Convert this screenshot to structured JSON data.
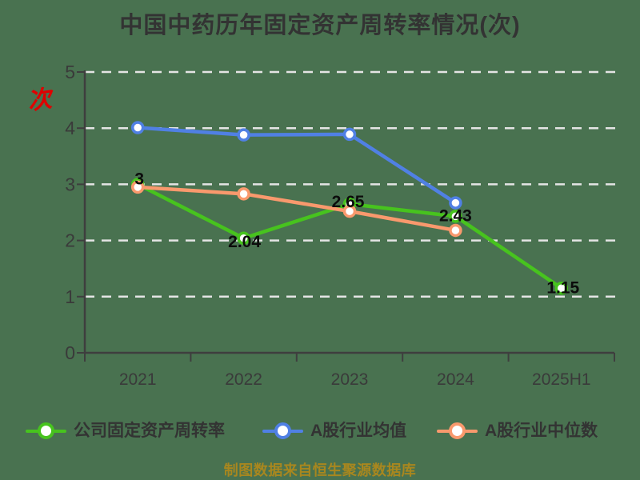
{
  "title": "中国中药历年固定资产周转率情况(次)",
  "y_axis_unit": "次",
  "watermark": "制图数据来自恒生聚源数据库",
  "colors": {
    "background": "#497250",
    "company": "#47c31e",
    "industry_mean": "#5080e4",
    "industry_median": "#f9996d",
    "axis": "#3e3e3e",
    "grid": "#e4e4e4",
    "title_text": "#333333",
    "tick_text": "#3a3a3a",
    "data_label": "#0c0c0c",
    "unit_text": "#e00000",
    "watermark_text": "#a8871f",
    "marker_fill": "#ffffff",
    "legend_text": "#333333"
  },
  "chart_data": {
    "type": "line",
    "title": "中国中药历年固定资产周转率情况(次)",
    "categories": [
      "2021",
      "2022",
      "2023",
      "2024",
      "2025H1"
    ],
    "ylim": [
      0,
      5
    ],
    "y_ticks": [
      0,
      1,
      2,
      3,
      4,
      5
    ],
    "grid": "horizontal-dashed",
    "legend_position": "bottom",
    "series": [
      {
        "name": "公司固定资产周转率",
        "color_key": "company",
        "values": [
          3,
          2.04,
          2.65,
          2.43,
          1.15
        ],
        "point_labels": [
          "3",
          "2.04",
          "2.65",
          "2.43",
          "1.15"
        ]
      },
      {
        "name": "A股行业均值",
        "color_key": "industry_mean",
        "values": [
          4.01,
          3.88,
          3.89,
          2.67,
          null
        ],
        "point_labels": null
      },
      {
        "name": "A股行业中位数",
        "color_key": "industry_median",
        "values": [
          2.95,
          2.83,
          2.52,
          2.18,
          null
        ],
        "point_labels": null
      }
    ]
  }
}
